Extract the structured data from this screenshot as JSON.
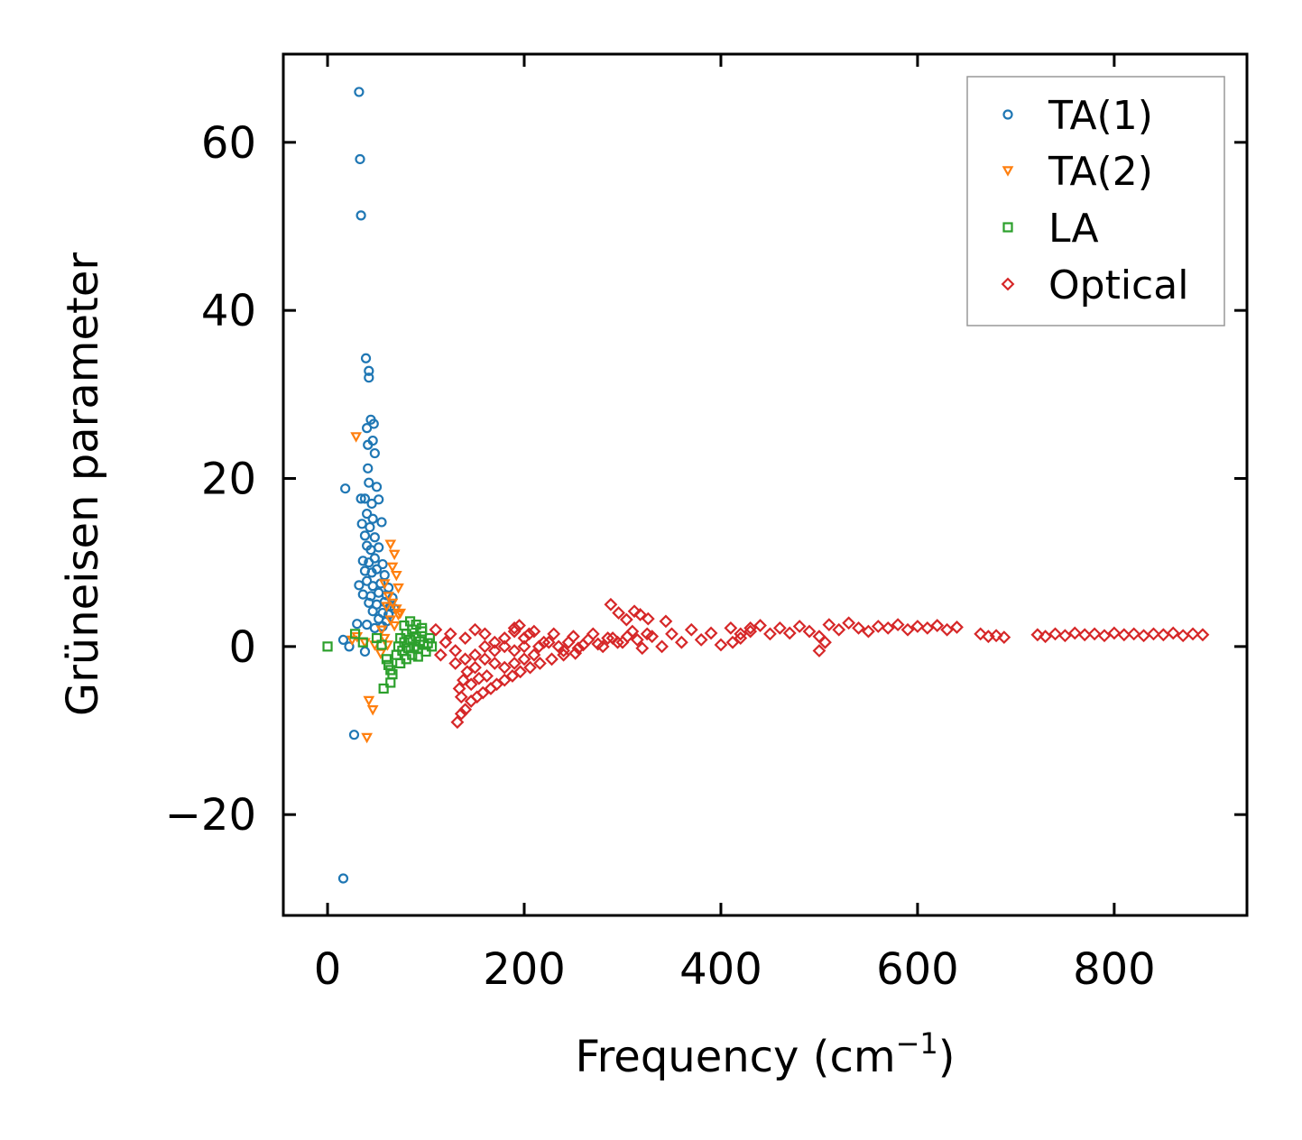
{
  "chart_data": {
    "type": "scatter",
    "xlabel": "Frequency (cm",
    "xlabel_superscript": "−1",
    "xlabel_close": ")",
    "ylabel": "Grüneisen parameter",
    "xlim": [
      -45,
      935
    ],
    "ylim": [
      -32,
      70.5
    ],
    "xticks": [
      0,
      200,
      400,
      600,
      800
    ],
    "xtick_labels": [
      "0",
      "200",
      "400",
      "600",
      "800"
    ],
    "yticks": [
      -20,
      0,
      20,
      40,
      60
    ],
    "ytick_labels": [
      "−20",
      "0",
      "20",
      "40",
      "60"
    ],
    "grid": false,
    "legend_position": "top-right",
    "series": [
      {
        "name": "TA(1)",
        "marker": "circle",
        "color": "#1f77b4",
        "points": [
          [
            32,
            66
          ],
          [
            33,
            58
          ],
          [
            34,
            51.3
          ],
          [
            39,
            34.3
          ],
          [
            42,
            32.8
          ],
          [
            42,
            32
          ],
          [
            40,
            26
          ],
          [
            44,
            27
          ],
          [
            47,
            26.5
          ],
          [
            41,
            24
          ],
          [
            46,
            24.5
          ],
          [
            48,
            23
          ],
          [
            41,
            21.2
          ],
          [
            42,
            19.5
          ],
          [
            50,
            19
          ],
          [
            18,
            18.8
          ],
          [
            34,
            17.6
          ],
          [
            38,
            17.6
          ],
          [
            45,
            17
          ],
          [
            52,
            17.5
          ],
          [
            40,
            15.8
          ],
          [
            46,
            15.2
          ],
          [
            35,
            14.6
          ],
          [
            43,
            14.2
          ],
          [
            55,
            14.8
          ],
          [
            38,
            13.2
          ],
          [
            48,
            13
          ],
          [
            40,
            12
          ],
          [
            44,
            11.5
          ],
          [
            52,
            11.8
          ],
          [
            36,
            10.2
          ],
          [
            42,
            10
          ],
          [
            48,
            10.5
          ],
          [
            56,
            9.8
          ],
          [
            38,
            9
          ],
          [
            45,
            8.8
          ],
          [
            50,
            9.2
          ],
          [
            58,
            8.5
          ],
          [
            32,
            7.3
          ],
          [
            40,
            7.8
          ],
          [
            46,
            7.2
          ],
          [
            54,
            7.5
          ],
          [
            62,
            7
          ],
          [
            36,
            6.2
          ],
          [
            44,
            6
          ],
          [
            52,
            6.4
          ],
          [
            60,
            6.1
          ],
          [
            66,
            5.8
          ],
          [
            42,
            5.2
          ],
          [
            50,
            5
          ],
          [
            58,
            5.3
          ],
          [
            64,
            4.8
          ],
          [
            46,
            4.2
          ],
          [
            56,
            4
          ],
          [
            62,
            3.8
          ],
          [
            68,
            4.5
          ],
          [
            52,
            3.3
          ],
          [
            60,
            3
          ],
          [
            30,
            2.7
          ],
          [
            40,
            2.6
          ],
          [
            48,
            2.2
          ],
          [
            56,
            2.4
          ],
          [
            16,
            0.8
          ],
          [
            22,
            0
          ],
          [
            38,
            -0.6
          ],
          [
            27,
            -10.5
          ],
          [
            16,
            -27.6
          ]
        ]
      },
      {
        "name": "TA(2)",
        "marker": "triangle-down",
        "color": "#ff7f0e",
        "points": [
          [
            29,
            25
          ],
          [
            64,
            12.2
          ],
          [
            68,
            11
          ],
          [
            66,
            9.5
          ],
          [
            70,
            8.5
          ],
          [
            72,
            7
          ],
          [
            58,
            7.5
          ],
          [
            62,
            6
          ],
          [
            66,
            5.2
          ],
          [
            70,
            4.5
          ],
          [
            74,
            4
          ],
          [
            60,
            4.8
          ],
          [
            64,
            3.2
          ],
          [
            68,
            2.5
          ],
          [
            72,
            3.8
          ],
          [
            55,
            2
          ],
          [
            58,
            1
          ],
          [
            61,
            0.2
          ],
          [
            30,
            1.2
          ],
          [
            25,
            0.8
          ],
          [
            38,
            0.5
          ],
          [
            48,
            0.2
          ],
          [
            54,
            -0.8
          ],
          [
            42,
            -6.4
          ],
          [
            46,
            -7.5
          ],
          [
            40,
            -10.8
          ]
        ]
      },
      {
        "name": "LA",
        "marker": "square",
        "color": "#2ca02c",
        "points": [
          [
            0,
            0
          ],
          [
            28,
            1.5
          ],
          [
            36,
            0.5
          ],
          [
            50,
            1
          ],
          [
            55,
            0.2
          ],
          [
            60,
            -1.5
          ],
          [
            62,
            -2.2
          ],
          [
            64,
            -2.8
          ],
          [
            66,
            -3.3
          ],
          [
            64,
            -4.3
          ],
          [
            57,
            -5
          ],
          [
            70,
            -1
          ],
          [
            72,
            0
          ],
          [
            74,
            1
          ],
          [
            76,
            -0.5
          ],
          [
            78,
            0.5
          ],
          [
            80,
            1.5
          ],
          [
            82,
            -0.2
          ],
          [
            84,
            0.8
          ],
          [
            86,
            2
          ],
          [
            88,
            0
          ],
          [
            90,
            1.2
          ],
          [
            92,
            -0.3
          ],
          [
            94,
            0.6
          ],
          [
            96,
            1.8
          ],
          [
            98,
            0.2
          ],
          [
            100,
            -0.6
          ],
          [
            102,
            0.4
          ],
          [
            104,
            1
          ],
          [
            106,
            0
          ],
          [
            74,
            -2
          ],
          [
            80,
            -1.5
          ],
          [
            86,
            -1
          ],
          [
            92,
            -1.2
          ],
          [
            78,
            2.5
          ],
          [
            84,
            3
          ],
          [
            90,
            2.6
          ],
          [
            96,
            2.2
          ]
        ]
      },
      {
        "name": "Optical",
        "marker": "diamond",
        "color": "#d62728",
        "points": [
          [
            132,
            -9
          ],
          [
            136,
            -8
          ],
          [
            140,
            -7.5
          ],
          [
            146,
            -6.5
          ],
          [
            152,
            -6
          ],
          [
            158,
            -5.5
          ],
          [
            166,
            -5
          ],
          [
            172,
            -4.5
          ],
          [
            180,
            -4
          ],
          [
            188,
            -3.5
          ],
          [
            196,
            -3
          ],
          [
            206,
            -2.5
          ],
          [
            216,
            -2
          ],
          [
            228,
            -1.5
          ],
          [
            240,
            -1
          ],
          [
            252,
            -0.8
          ],
          [
            134,
            -5
          ],
          [
            138,
            -4
          ],
          [
            142,
            -3
          ],
          [
            136,
            -6
          ],
          [
            130,
            -2
          ],
          [
            140,
            -1.5
          ],
          [
            150,
            -2.5
          ],
          [
            146,
            -4.5
          ],
          [
            154,
            -3.8
          ],
          [
            162,
            -3.5
          ],
          [
            150,
            -1
          ],
          [
            160,
            -1.5
          ],
          [
            170,
            -2
          ],
          [
            180,
            -2.5
          ],
          [
            190,
            -2
          ],
          [
            200,
            -1.5
          ],
          [
            160,
            0
          ],
          [
            170,
            -0.5
          ],
          [
            180,
            0
          ],
          [
            190,
            -0.5
          ],
          [
            200,
            0
          ],
          [
            210,
            -1
          ],
          [
            215,
            0
          ],
          [
            225,
            0.5
          ],
          [
            235,
            0
          ],
          [
            245,
            0.5
          ],
          [
            255,
            -0.2
          ],
          [
            265,
            0.8
          ],
          [
            275,
            0.3
          ],
          [
            285,
            1
          ],
          [
            295,
            0.5
          ],
          [
            305,
            1.2
          ],
          [
            315,
            0.8
          ],
          [
            325,
            1.5
          ],
          [
            110,
            2
          ],
          [
            115,
            -1
          ],
          [
            120,
            0.5
          ],
          [
            125,
            1.5
          ],
          [
            130,
            -0.5
          ],
          [
            140,
            1
          ],
          [
            150,
            2
          ],
          [
            160,
            1.5
          ],
          [
            170,
            0.5
          ],
          [
            180,
            1
          ],
          [
            190,
            2.2
          ],
          [
            200,
            1
          ],
          [
            210,
            1.8
          ],
          [
            220,
            0.5
          ],
          [
            230,
            1.5
          ],
          [
            240,
            -0.5
          ],
          [
            250,
            1.2
          ],
          [
            260,
            0.2
          ],
          [
            270,
            1.5
          ],
          [
            280,
            0
          ],
          [
            290,
            1
          ],
          [
            300,
            0.5
          ],
          [
            310,
            1.8
          ],
          [
            320,
            -0.2
          ],
          [
            330,
            1.2
          ],
          [
            340,
            0
          ],
          [
            350,
            1.5
          ],
          [
            360,
            0.5
          ],
          [
            370,
            2
          ],
          [
            380,
            0.8
          ],
          [
            390,
            1.6
          ],
          [
            400,
            0.2
          ],
          [
            410,
            2.2
          ],
          [
            420,
            1
          ],
          [
            430,
            1.8
          ],
          [
            440,
            2.5
          ],
          [
            450,
            1.5
          ],
          [
            460,
            2.2
          ],
          [
            470,
            1.6
          ],
          [
            480,
            2.4
          ],
          [
            490,
            1.8
          ],
          [
            500,
            1.2
          ],
          [
            510,
            2.6
          ],
          [
            520,
            2
          ],
          [
            530,
            2.8
          ],
          [
            540,
            2.2
          ],
          [
            550,
            1.8
          ],
          [
            560,
            2.4
          ],
          [
            570,
            2.2
          ],
          [
            580,
            2.6
          ],
          [
            590,
            2
          ],
          [
            600,
            2.4
          ],
          [
            610,
            2.2
          ],
          [
            620,
            2.5
          ],
          [
            630,
            2
          ],
          [
            640,
            2.3
          ],
          [
            288,
            5
          ],
          [
            296,
            4
          ],
          [
            304,
            3.2
          ],
          [
            312,
            4.2
          ],
          [
            318,
            3.8
          ],
          [
            326,
            3.3
          ],
          [
            344,
            3
          ],
          [
            190,
            1.8
          ],
          [
            195,
            2.5
          ],
          [
            205,
            1.5
          ],
          [
            412,
            0.5
          ],
          [
            420,
            1.5
          ],
          [
            430,
            2.2
          ],
          [
            500,
            -0.5
          ],
          [
            506,
            0.5
          ],
          [
            664,
            1.5
          ],
          [
            672,
            1.2
          ],
          [
            680,
            1.3
          ],
          [
            688,
            1.1
          ],
          [
            722,
            1.4
          ],
          [
            730,
            1.2
          ],
          [
            740,
            1.5
          ],
          [
            750,
            1.3
          ],
          [
            760,
            1.6
          ],
          [
            770,
            1.4
          ],
          [
            780,
            1.5
          ],
          [
            790,
            1.3
          ],
          [
            800,
            1.6
          ],
          [
            810,
            1.4
          ],
          [
            820,
            1.5
          ],
          [
            830,
            1.3
          ],
          [
            840,
            1.5
          ],
          [
            850,
            1.4
          ],
          [
            860,
            1.6
          ],
          [
            870,
            1.3
          ],
          [
            880,
            1.5
          ],
          [
            890,
            1.4
          ]
        ]
      }
    ]
  }
}
